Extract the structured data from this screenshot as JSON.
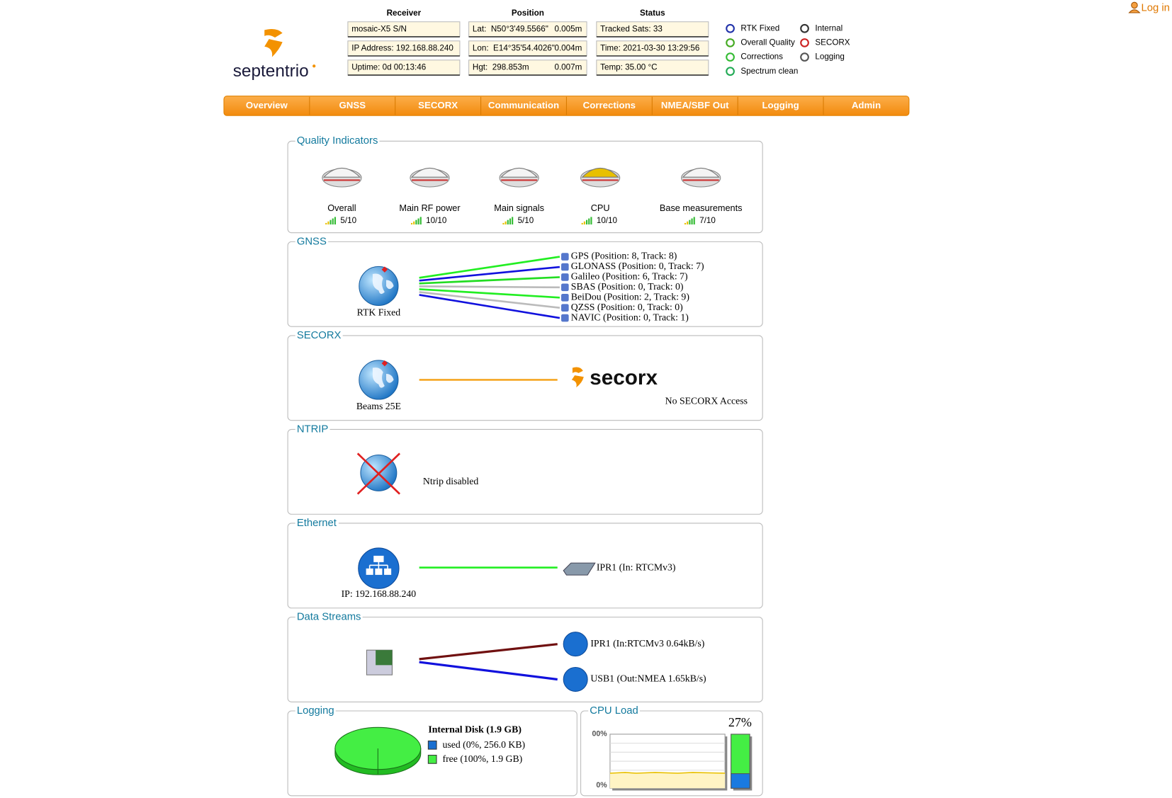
{
  "header": {
    "logo": "septentrio",
    "login": "Log in",
    "receiver": {
      "title": "Receiver",
      "rows": [
        "mosaic-X5 S/N",
        "IP Address: 192.168.88.240",
        "Uptime: 0d 00:13:46"
      ]
    },
    "position": {
      "title": "Position",
      "rows": [
        {
          "coordinate": "Lat:  N50°3'49.5566\"",
          "accuracy": "0.005m"
        },
        {
          "coordinate": "Lon:  E14°35'54.4026\"",
          "accuracy": "0.004m"
        },
        {
          "coordinate": "Hgt:  298.853m",
          "accuracy": "0.007m"
        }
      ]
    },
    "status": {
      "title": "Status",
      "rows": [
        "Tracked Sats: 33",
        "Time: 2021-03-30 13:29:56",
        "Temp: 35.00 °C"
      ]
    },
    "legend": [
      "RTK Fixed",
      "Overall Quality",
      "Corrections",
      "Spectrum clean",
      "Internal",
      "SECORX",
      "Logging"
    ]
  },
  "nav": [
    "Overview",
    "GNSS",
    "SECORX",
    "Communication",
    "Corrections",
    "NMEA/SBF Out",
    "Logging",
    "Admin"
  ],
  "quality": {
    "title": "Quality Indicators",
    "items": [
      {
        "name": "Overall",
        "score": "5/10"
      },
      {
        "name": "Main RF power",
        "score": "10/10"
      },
      {
        "name": "Main signals",
        "score": "5/10"
      },
      {
        "name": "CPU",
        "score": "10/10"
      },
      {
        "name": "Base measurements",
        "score": "7/10"
      }
    ]
  },
  "gnss": {
    "title": "GNSS",
    "status": "RTK Fixed",
    "constellations": [
      "GPS (Position: 8, Track: 8)",
      "GLONASS (Position: 0, Track: 7)",
      "Galileo (Position: 6, Track: 7)",
      "SBAS (Position: 0, Track: 0)",
      "BeiDou (Position: 2, Track: 9)",
      "QZSS (Position: 0, Track: 0)",
      "NAVIC (Position: 0, Track: 1)"
    ]
  },
  "secorx": {
    "title": "SECORX",
    "status": "Beams 25E",
    "logo": "secorx",
    "message": "No SECORX Access"
  },
  "ntrip": {
    "title": "NTRIP",
    "message": "Ntrip disabled"
  },
  "ethernet": {
    "title": "Ethernet",
    "ip": "IP: 192.168.88.240",
    "link": "IPR1 (In: RTCMv3)"
  },
  "data_streams": {
    "title": "Data Streams",
    "streams": [
      "IPR1 (In:RTCMv3 0.64kB/s)",
      "USB1 (Out:NMEA 1.65kB/s)"
    ]
  },
  "logging": {
    "title": "Logging",
    "disk": "Internal Disk (1.9 GB)",
    "legend": [
      "used (0%, 256.0 KB)",
      "free (100%, 1.9 GB)"
    ]
  },
  "cpu": {
    "title": "CPU Load",
    "load": 27,
    "load_label": "27%",
    "axis": [
      "00%",
      "0%"
    ]
  }
}
